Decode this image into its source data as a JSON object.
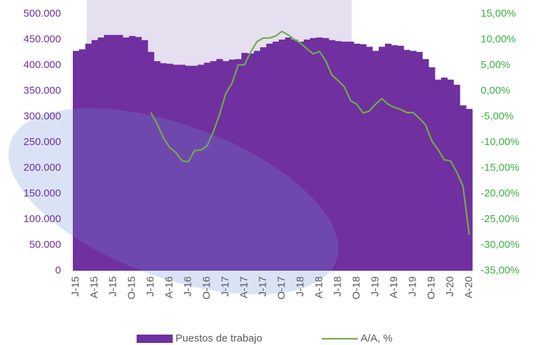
{
  "chart_data": {
    "type": "bar-line",
    "categories": [
      "J-15",
      null,
      null,
      "A-15",
      null,
      null,
      "J-15",
      null,
      null,
      "O-15",
      null,
      null,
      "J-16",
      null,
      null,
      "A-16",
      null,
      null,
      "J-16",
      null,
      null,
      "O-16",
      null,
      null,
      "J-17",
      null,
      null,
      "A-17",
      null,
      null,
      "J-17",
      null,
      null,
      "O-17",
      null,
      null,
      "J-18",
      null,
      null,
      "A-18",
      null,
      null,
      "J-18",
      null,
      null,
      "O-18",
      null,
      null,
      "J-19",
      null,
      null,
      "A-19",
      null,
      null,
      "J-19",
      null,
      null,
      "O-19",
      null,
      null,
      "J-20",
      null,
      null,
      "A-20"
    ],
    "series": [
      {
        "name": "Puestos de trabajo",
        "color": "#7030a0",
        "kind": "bar",
        "axis": "y",
        "values": [
          428000,
          431000,
          442000,
          449000,
          454000,
          459000,
          459000,
          459000,
          454000,
          457000,
          455000,
          449000,
          426000,
          408000,
          404000,
          403000,
          401000,
          401000,
          399000,
          399000,
          401000,
          405000,
          408000,
          412000,
          408000,
          411000,
          412000,
          424000,
          423000,
          428000,
          435000,
          442000,
          446000,
          450000,
          454000,
          450000,
          446000,
          450000,
          453000,
          454000,
          453000,
          449000,
          447000,
          446000,
          446000,
          442000,
          441000,
          436000,
          428000,
          436000,
          442000,
          439000,
          438000,
          430000,
          428000,
          426000,
          412000,
          396000,
          372000,
          376000,
          372000,
          362000,
          322000,
          315000
        ]
      },
      {
        "name": "A/A, %",
        "color": "#70ad47",
        "kind": "line",
        "axis": "y2",
        "values": [
          null,
          null,
          null,
          null,
          null,
          null,
          null,
          null,
          null,
          null,
          null,
          null,
          -4.2,
          -6.4,
          -9.1,
          -11,
          -12,
          -13.6,
          -13.8,
          -11.6,
          -11.5,
          -10.7,
          -8,
          -4.6,
          -0.5,
          1.5,
          5.1,
          5.1,
          7.6,
          9.6,
          10.3,
          10.3,
          10.7,
          11.6,
          10.9,
          10,
          9.3,
          8.2,
          7.2,
          7.7,
          5.9,
          3.1,
          2,
          0.8,
          -1.9,
          -2.6,
          -4.3,
          -3.9,
          -2.6,
          -1.5,
          -2.6,
          -3.2,
          -3.6,
          -4.2,
          -4.2,
          -5.3,
          -6.6,
          -9.7,
          -11.4,
          -13.4,
          -13.6,
          -15.8,
          -18.5,
          -28
        ]
      }
    ],
    "ylim": [
      0,
      500000
    ],
    "yticks": [
      0,
      {
        "value": 50000,
        "label": "50.000"
      },
      {
        "value": 100000,
        "label": "100.000"
      },
      {
        "value": 150000,
        "label": "150.000"
      },
      {
        "value": 200000,
        "label": "200.000"
      },
      {
        "value": 250000,
        "label": "250.000"
      },
      {
        "value": 300000,
        "label": "300.000"
      },
      {
        "value": 350000,
        "label": "350.000"
      },
      {
        "value": 400000,
        "label": "400.000"
      },
      {
        "value": 450000,
        "label": "450.000"
      },
      {
        "value": 500000,
        "label": "500.000"
      }
    ],
    "y2lim": [
      -35,
      15
    ],
    "y2ticks": [
      {
        "value": -35,
        "label": "-35,00%"
      },
      {
        "value": -30,
        "label": "-30,00%"
      },
      {
        "value": -25,
        "label": "-25,00%"
      },
      {
        "value": -20,
        "label": "-20,00%"
      },
      {
        "value": -15,
        "label": "-15,00%"
      },
      {
        "value": -10,
        "label": "-10,00%"
      },
      {
        "value": -5,
        "label": "-5,00%"
      },
      {
        "value": 0,
        "label": "0,00%"
      },
      {
        "value": 5,
        "label": "5,00%"
      },
      {
        "value": 10,
        "label": "10,00%"
      },
      {
        "value": 15,
        "label": "15,00%"
      }
    ],
    "legend": "bottom"
  }
}
